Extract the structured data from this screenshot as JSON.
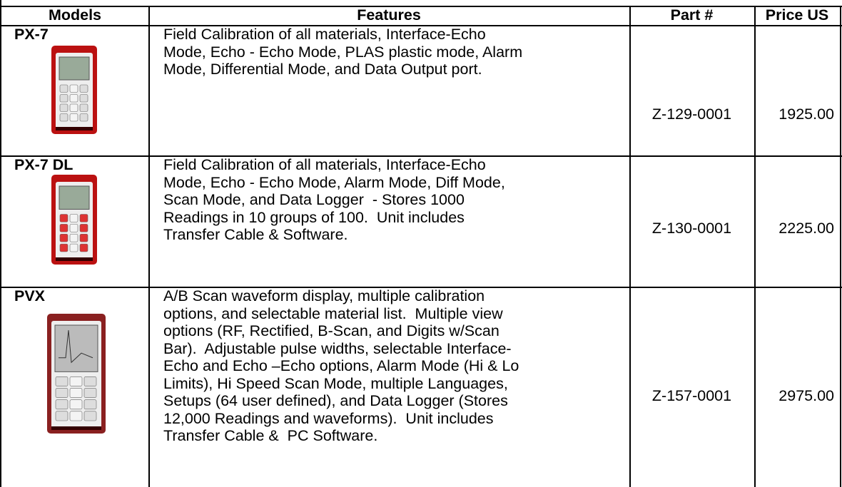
{
  "header": {
    "columns": [
      "Models",
      "Features",
      "Part #",
      "Price US"
    ]
  },
  "rows": [
    {
      "model": "PX-7",
      "features": [
        "Field Calibration of all materials, Interface-Echo",
        "Mode, Echo - Echo Mode, PLAS plastic mode, Alarm",
        "Mode, Differential Mode, and Data Output port."
      ],
      "part": "Z-129-0001",
      "price": "1925.00"
    },
    {
      "model": "PX-7 DL",
      "features": [
        "Field Calibration of all materials, Interface-Echo",
        "Mode, Echo - Echo Mode, Alarm Mode, Diff Mode,",
        "Scan Mode, and Data Logger  - Stores 1000",
        "Readings in 10 groups of 100.  Unit includes",
        "Transfer Cable & Software."
      ],
      "part": "Z-130-0001",
      "price": "2225.00"
    },
    {
      "model": "PVX",
      "features": [
        "A/B Scan waveform display, multiple calibration",
        "options, and selectable material list.  Multiple view",
        "options (RF, Rectified, B-Scan, and Digits w/Scan",
        "Bar).  Adjustable pulse widths, selectable Interface-",
        "Echo and Echo –Echo options, Alarm Mode (Hi & Lo",
        "Limits), Hi Speed Scan Mode, multiple Languages,",
        "Setups (64 user defined), and Data Logger (Stores",
        "12,000 Readings and waveforms).  Unit includes",
        "Transfer Cable &  PC Software."
      ],
      "part": "Z-157-0001",
      "price": "2975.00"
    }
  ]
}
